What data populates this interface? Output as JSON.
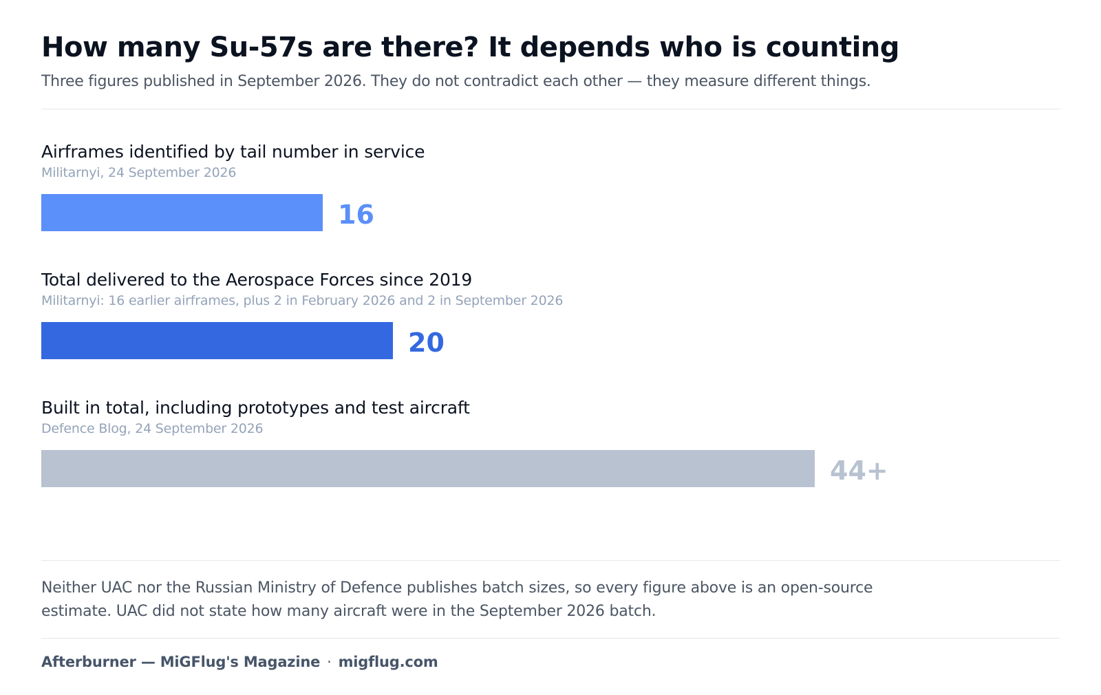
{
  "header": {
    "title": "How many Su-57s are there? It depends who is counting",
    "subtitle": "Three figures published in September 2026. They do not contradict each other — they measure different things."
  },
  "chart_data": {
    "type": "bar",
    "orientation": "horizontal",
    "title": "How many Su-57s are there? It depends who is counting",
    "categories": [
      "Airframes identified by tail number in service",
      "Total delivered to the Aerospace Forces since 2019",
      "Built in total, including prototypes and test aircraft"
    ],
    "sources": [
      "Militarnyi, 24 September 2026",
      "Militarnyi: 16 earlier airframes, plus 2 in February 2026 and 2 in September 2026",
      "Defence Blog, 24 September 2026"
    ],
    "values": [
      16,
      20,
      44
    ],
    "value_labels": [
      "16",
      "20",
      "44+"
    ],
    "colors": [
      "#5b8ff9",
      "#3468e0",
      "#b8c2d1"
    ],
    "xlim": [
      0,
      58
    ],
    "grid": false
  },
  "note": "Neither UAC nor the Russian Ministry of Defence publishes batch sizes, so every figure above is an open-source estimate. UAC did not state how many aircraft were in the September 2026 batch.",
  "footer": {
    "publication": "Afterburner — MiGFlug's Magazine",
    "separator": "·",
    "site": "migflug.com"
  }
}
